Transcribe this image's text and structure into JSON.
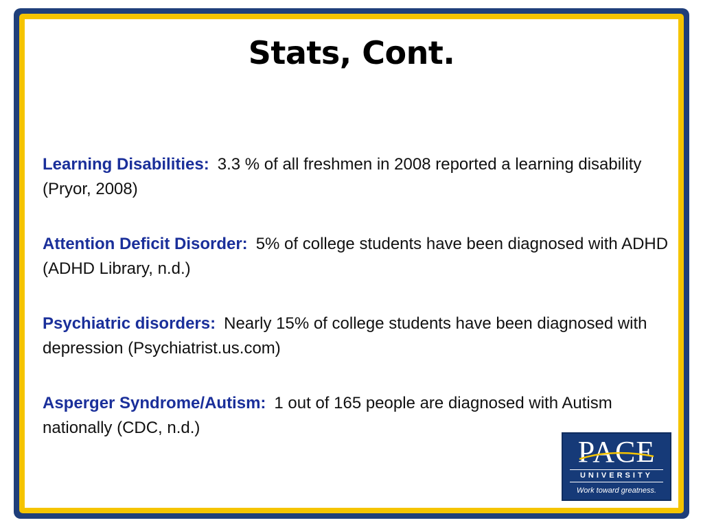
{
  "slide": {
    "title": "Stats, Cont."
  },
  "stats": [
    {
      "label": "Learning Disabilities:",
      "text": "3.3 % of all freshmen in 2008 reported a learning disability (Pryor, 2008)"
    },
    {
      "label": "Attention Deficit Disorder:",
      "text": "5% of college students have been diagnosed with ADHD (ADHD Library, n.d.)"
    },
    {
      "label": "Psychiatric disorders:",
      "text": "Nearly 15% of college students have been diagnosed with depression (Psychiatrist.us.com)"
    },
    {
      "label": "Asperger Syndrome/Autism:",
      "text": "1 out of 165 people are diagnosed with Autism nationally (CDC, n.d.)"
    }
  ],
  "logo": {
    "name": "PACE",
    "subtitle": "UNIVERSITY",
    "tagline": "Work toward greatness."
  },
  "colors": {
    "frame": "#1f3f7a",
    "frame_accent": "#f5c400",
    "label": "#1a2f9a",
    "logo_bg": "#163a78"
  }
}
